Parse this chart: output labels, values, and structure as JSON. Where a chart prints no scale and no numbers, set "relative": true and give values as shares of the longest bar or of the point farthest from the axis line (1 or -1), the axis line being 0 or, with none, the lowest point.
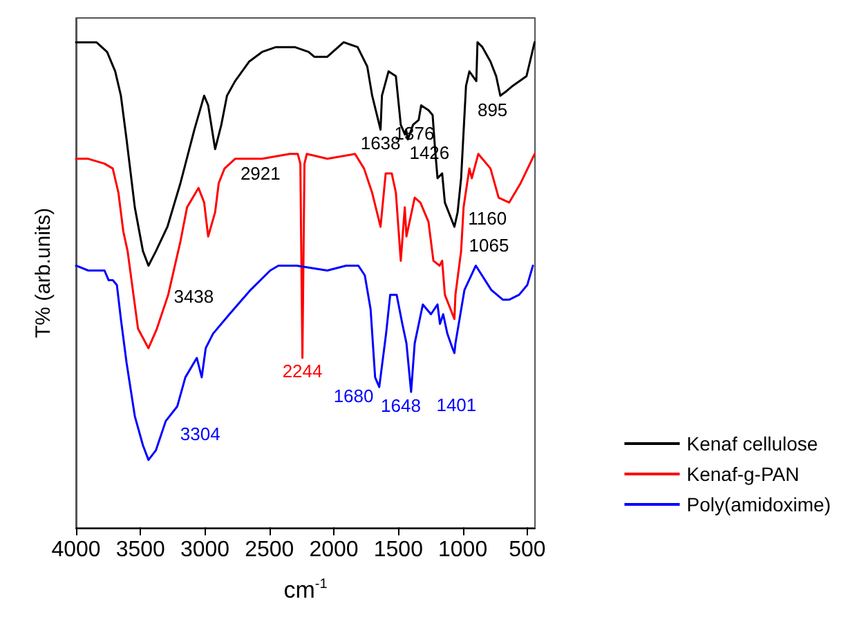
{
  "chart_data": {
    "type": "line",
    "relative": true,
    "xlabel": "cm$^{-1}$",
    "ylabel": "T% (arb.units)",
    "xlim": [
      4000,
      440
    ],
    "xticks": [
      4000,
      3500,
      3000,
      2500,
      2000,
      1500,
      1000,
      500
    ],
    "legend": "bottom right",
    "marker": "none",
    "line_style": "solid",
    "series": [
      {
        "name": "Kenaf cellulose",
        "color": "#000000",
        "x": [
          4000,
          3842,
          3759,
          3696,
          3652,
          3608,
          3544,
          3481,
          3438,
          3380,
          3291,
          3190,
          3082,
          3006,
          2975,
          2921,
          2873,
          2829,
          2766,
          2658,
          2557,
          2449,
          2304,
          2196,
          2152,
          2051,
          1924,
          1816,
          1741,
          1703,
          1638,
          1627,
          1576,
          1519,
          1481,
          1449,
          1440,
          1426,
          1386,
          1342,
          1323,
          1266,
          1234,
          1215,
          1196,
          1160,
          1139,
          1065,
          1040,
          1013,
          975,
          949,
          895,
          886,
          848,
          785,
          741,
          709,
          658,
          614,
          506,
          443
        ],
        "values": [
          1.0,
          1.0,
          0.98,
          0.94,
          0.89,
          0.8,
          0.66,
          0.57,
          0.54,
          0.57,
          0.62,
          0.71,
          0.82,
          0.89,
          0.87,
          0.78,
          0.83,
          0.89,
          0.92,
          0.96,
          0.98,
          0.99,
          0.99,
          0.98,
          0.97,
          0.97,
          1.0,
          0.99,
          0.95,
          0.89,
          0.82,
          0.89,
          0.94,
          0.93,
          0.83,
          0.81,
          0.82,
          0.8,
          0.83,
          0.84,
          0.87,
          0.86,
          0.85,
          0.78,
          0.72,
          0.73,
          0.67,
          0.62,
          0.65,
          0.72,
          0.91,
          0.94,
          0.92,
          1.0,
          0.99,
          0.96,
          0.93,
          0.89,
          0.9,
          0.91,
          0.93,
          1.0
        ]
      },
      {
        "name": "Kenaf-g-PAN",
        "color": "#ff0000",
        "x": [
          4000,
          3905,
          3779,
          3715,
          3671,
          3633,
          3600,
          3519,
          3438,
          3373,
          3285,
          3190,
          3139,
          3050,
          3006,
          2975,
          2921,
          2893,
          2848,
          2766,
          2557,
          2342,
          2280,
          2260,
          2244,
          2228,
          2210,
          2051,
          1836,
          1766,
          1703,
          1638,
          1598,
          1551,
          1519,
          1481,
          1450,
          1437,
          1405,
          1373,
          1329,
          1266,
          1228,
          1180,
          1160,
          1139,
          1065,
          1057,
          1013,
          994,
          949,
          930,
          880,
          785,
          722,
          640,
          551,
          443
        ],
        "values": [
          0.76,
          0.76,
          0.75,
          0.74,
          0.69,
          0.61,
          0.57,
          0.41,
          0.37,
          0.41,
          0.48,
          0.59,
          0.66,
          0.7,
          0.67,
          0.6,
          0.65,
          0.71,
          0.74,
          0.76,
          0.76,
          0.77,
          0.77,
          0.75,
          0.35,
          0.75,
          0.77,
          0.76,
          0.77,
          0.74,
          0.69,
          0.62,
          0.73,
          0.73,
          0.69,
          0.55,
          0.66,
          0.6,
          0.64,
          0.68,
          0.67,
          0.63,
          0.55,
          0.54,
          0.55,
          0.48,
          0.43,
          0.48,
          0.57,
          0.66,
          0.74,
          0.72,
          0.77,
          0.74,
          0.68,
          0.67,
          0.71,
          0.77
        ]
      },
      {
        "name": "Poly(amidoxime)",
        "color": "#0000ff",
        "x": [
          4000,
          3905,
          3823,
          3779,
          3747,
          3715,
          3683,
          3652,
          3608,
          3544,
          3481,
          3438,
          3380,
          3304,
          3215,
          3152,
          3063,
          3025,
          2994,
          2937,
          2810,
          2646,
          2494,
          2430,
          2288,
          2051,
          1905,
          1810,
          1760,
          1715,
          1680,
          1648,
          1595,
          1563,
          1513,
          1469,
          1437,
          1401,
          1373,
          1310,
          1247,
          1196,
          1177,
          1152,
          1120,
          1080,
          1065,
          1057,
          987,
          899,
          779,
          690,
          639,
          563,
          500,
          456
        ],
        "values": [
          0.54,
          0.53,
          0.53,
          0.53,
          0.51,
          0.51,
          0.5,
          0.43,
          0.34,
          0.23,
          0.17,
          0.14,
          0.16,
          0.22,
          0.25,
          0.31,
          0.35,
          0.31,
          0.37,
          0.4,
          0.44,
          0.49,
          0.53,
          0.54,
          0.54,
          0.53,
          0.54,
          0.54,
          0.52,
          0.45,
          0.31,
          0.29,
          0.4,
          0.48,
          0.48,
          0.42,
          0.38,
          0.28,
          0.38,
          0.46,
          0.44,
          0.46,
          0.42,
          0.44,
          0.4,
          0.37,
          0.36,
          0.38,
          0.49,
          0.54,
          0.49,
          0.47,
          0.47,
          0.48,
          0.5,
          0.54
        ]
      }
    ],
    "annotations": [
      {
        "text": "3438",
        "x": 3438,
        "y": 0.54
      },
      {
        "text": "2921",
        "x": 2921,
        "y": 0.78
      },
      {
        "text": "1638",
        "x": 1638,
        "y": 0.82
      },
      {
        "text": "1426",
        "x": 1426,
        "y": 0.8
      },
      {
        "text": "1376",
        "x": 1376,
        "y": 0.84
      },
      {
        "text": "1160",
        "x": 1160,
        "y": 0.73
      },
      {
        "text": "1065",
        "x": 1065,
        "y": 0.62
      },
      {
        "text": "895",
        "x": 895,
        "y": 0.91
      },
      {
        "text": "2244",
        "x": 2244,
        "y": 0.35
      },
      {
        "text": "3304",
        "x": 3304,
        "y": 0.22
      },
      {
        "text": "1680",
        "x": 1680,
        "y": 0.31
      },
      {
        "text": "1648",
        "x": 1648,
        "y": 0.29
      },
      {
        "text": "1401",
        "x": 1401,
        "y": 0.28
      }
    ]
  }
}
